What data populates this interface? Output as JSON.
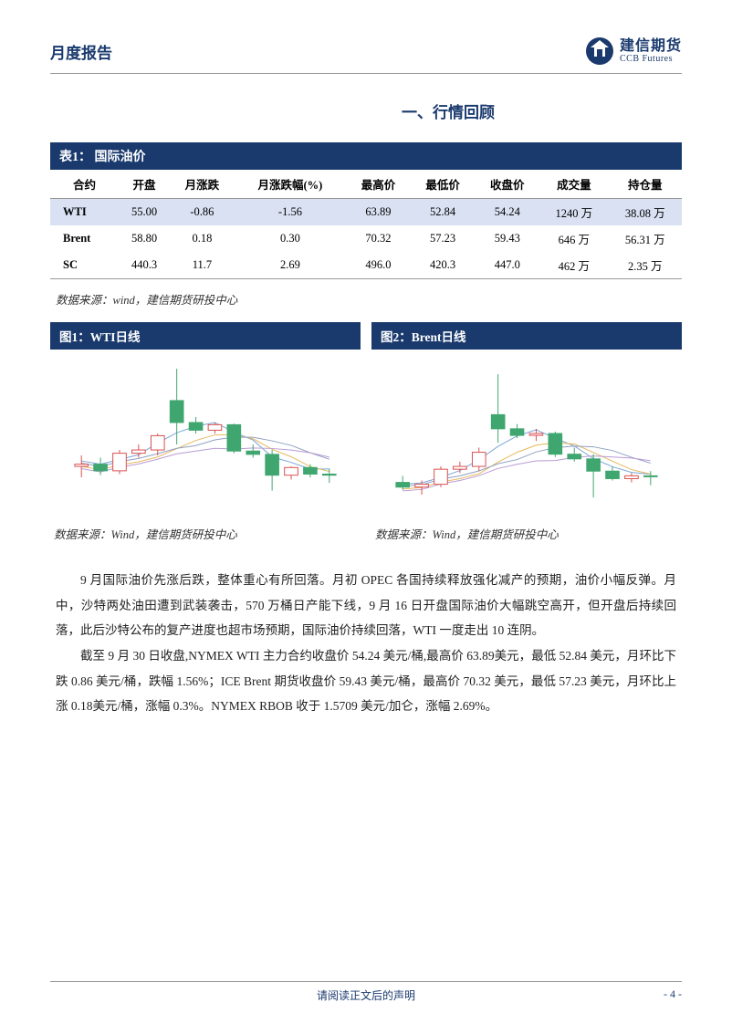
{
  "header": {
    "title": "月度报告"
  },
  "logo": {
    "cn": "建信期货",
    "en": "CCB Futures"
  },
  "section_title": "一、行情回顾",
  "table1": {
    "caption": "表1： 国际油价",
    "columns": [
      "合约",
      "开盘",
      "月涨跌",
      "月涨跌幅(%)",
      "最高价",
      "最低价",
      "收盘价",
      "成交量",
      "持仓量"
    ],
    "rows": [
      [
        "WTI",
        "55.00",
        "-0.86",
        "-1.56",
        "63.89",
        "52.84",
        "54.24",
        "1240 万",
        "38.08 万"
      ],
      [
        "Brent",
        "58.80",
        "0.18",
        "0.30",
        "70.32",
        "57.23",
        "59.43",
        "646 万",
        "56.31 万"
      ],
      [
        "SC",
        "440.3",
        "11.7",
        "2.69",
        "496.0",
        "420.3",
        "447.0",
        "462 万",
        "2.35 万"
      ]
    ],
    "source": "数据来源：wind，建信期货研投中心"
  },
  "chart1": {
    "caption": "图1：WTI日线",
    "source": "数据来源：Wind，建信期货研投中心",
    "type": "candlestick",
    "background_color": "#ffffff",
    "up_color": "#ffffff",
    "up_border": "#d94f4f",
    "down_color": "#3fa66f",
    "down_border": "#3fa66f",
    "ma_colors": [
      "#7aa6d8",
      "#e6b85c",
      "#8fa0c2",
      "#b89bd6"
    ],
    "candles": [
      {
        "o": 55,
        "h": 56,
        "l": 54,
        "c": 55.2
      },
      {
        "o": 55.2,
        "h": 55.8,
        "l": 54.2,
        "c": 54.6
      },
      {
        "o": 54.6,
        "h": 56.5,
        "l": 54.3,
        "c": 56.2
      },
      {
        "o": 56.2,
        "h": 57,
        "l": 55.8,
        "c": 56.5
      },
      {
        "o": 56.5,
        "h": 58,
        "l": 56,
        "c": 57.8
      },
      {
        "o": 61,
        "h": 63.9,
        "l": 57,
        "c": 59
      },
      {
        "o": 59,
        "h": 59.5,
        "l": 58,
        "c": 58.3
      },
      {
        "o": 58.3,
        "h": 59,
        "l": 58,
        "c": 58.8
      },
      {
        "o": 58.8,
        "h": 58.9,
        "l": 56.2,
        "c": 56.4
      },
      {
        "o": 56.4,
        "h": 57,
        "l": 55.8,
        "c": 56.1
      },
      {
        "o": 56.1,
        "h": 56.5,
        "l": 52.8,
        "c": 54.2
      },
      {
        "o": 54.2,
        "h": 55,
        "l": 53.8,
        "c": 54.9
      },
      {
        "o": 54.9,
        "h": 55.2,
        "l": 54,
        "c": 54.3
      },
      {
        "o": 54.3,
        "h": 54.8,
        "l": 53.5,
        "c": 54.2
      }
    ],
    "yrange": [
      52,
      64
    ]
  },
  "chart2": {
    "caption": "图2：Brent日线",
    "source": "数据来源：Wind，建信期货研投中心",
    "type": "candlestick",
    "background_color": "#ffffff",
    "up_color": "#ffffff",
    "up_border": "#d94f4f",
    "down_color": "#3fa66f",
    "down_border": "#3fa66f",
    "ma_colors": [
      "#7aa6d8",
      "#e6b85c",
      "#8fa0c2",
      "#b89bd6"
    ],
    "candles": [
      {
        "o": 58.8,
        "h": 59.5,
        "l": 58,
        "c": 58.3
      },
      {
        "o": 58.3,
        "h": 59,
        "l": 57.5,
        "c": 58.6
      },
      {
        "o": 58.6,
        "h": 60.5,
        "l": 58.3,
        "c": 60.2
      },
      {
        "o": 60.2,
        "h": 61,
        "l": 59.8,
        "c": 60.5
      },
      {
        "o": 60.5,
        "h": 62.5,
        "l": 60,
        "c": 62
      },
      {
        "o": 66,
        "h": 70.3,
        "l": 63,
        "c": 64.5
      },
      {
        "o": 64.5,
        "h": 65,
        "l": 63.5,
        "c": 63.8
      },
      {
        "o": 63.8,
        "h": 64.5,
        "l": 63.2,
        "c": 64
      },
      {
        "o": 64,
        "h": 64.2,
        "l": 61.5,
        "c": 61.8
      },
      {
        "o": 61.8,
        "h": 62.5,
        "l": 61,
        "c": 61.3
      },
      {
        "o": 61.3,
        "h": 61.8,
        "l": 57.2,
        "c": 60
      },
      {
        "o": 60,
        "h": 60.5,
        "l": 59,
        "c": 59.2
      },
      {
        "o": 59.2,
        "h": 59.8,
        "l": 58.8,
        "c": 59.5
      },
      {
        "o": 59.5,
        "h": 60,
        "l": 58.5,
        "c": 59.4
      }
    ],
    "yrange": [
      57,
      71
    ]
  },
  "body": {
    "p1": "9 月国际油价先涨后跌，整体重心有所回落。月初 OPEC 各国持续释放强化减产的预期，油价小幅反弹。月中，沙特两处油田遭到武装袭击，570 万桶日产能下线，9 月 16 日开盘国际油价大幅跳空高开，但开盘后持续回落，此后沙特公布的复产进度也超市场预期，国际油价持续回落，WTI 一度走出 10 连阴。",
    "p2": "截至 9 月 30 日收盘,NYMEX  WTI 主力合约收盘价 54.24 美元/桶,最高价 63.89美元，最低 52.84 美元，月环比下跌 0.86 美元/桶，跌幅 1.56%；ICE Brent 期货收盘价 59.43 美元/桶，最高价 70.32 美元，最低 57.23 美元，月环比上涨 0.18美元/桶，涨幅 0.3%。NYMEX RBOB 收于 1.5709 美元/加仑，涨幅 2.69%。"
  },
  "footer": {
    "center": "请阅读正文后的声明",
    "right": "- 4 -"
  }
}
